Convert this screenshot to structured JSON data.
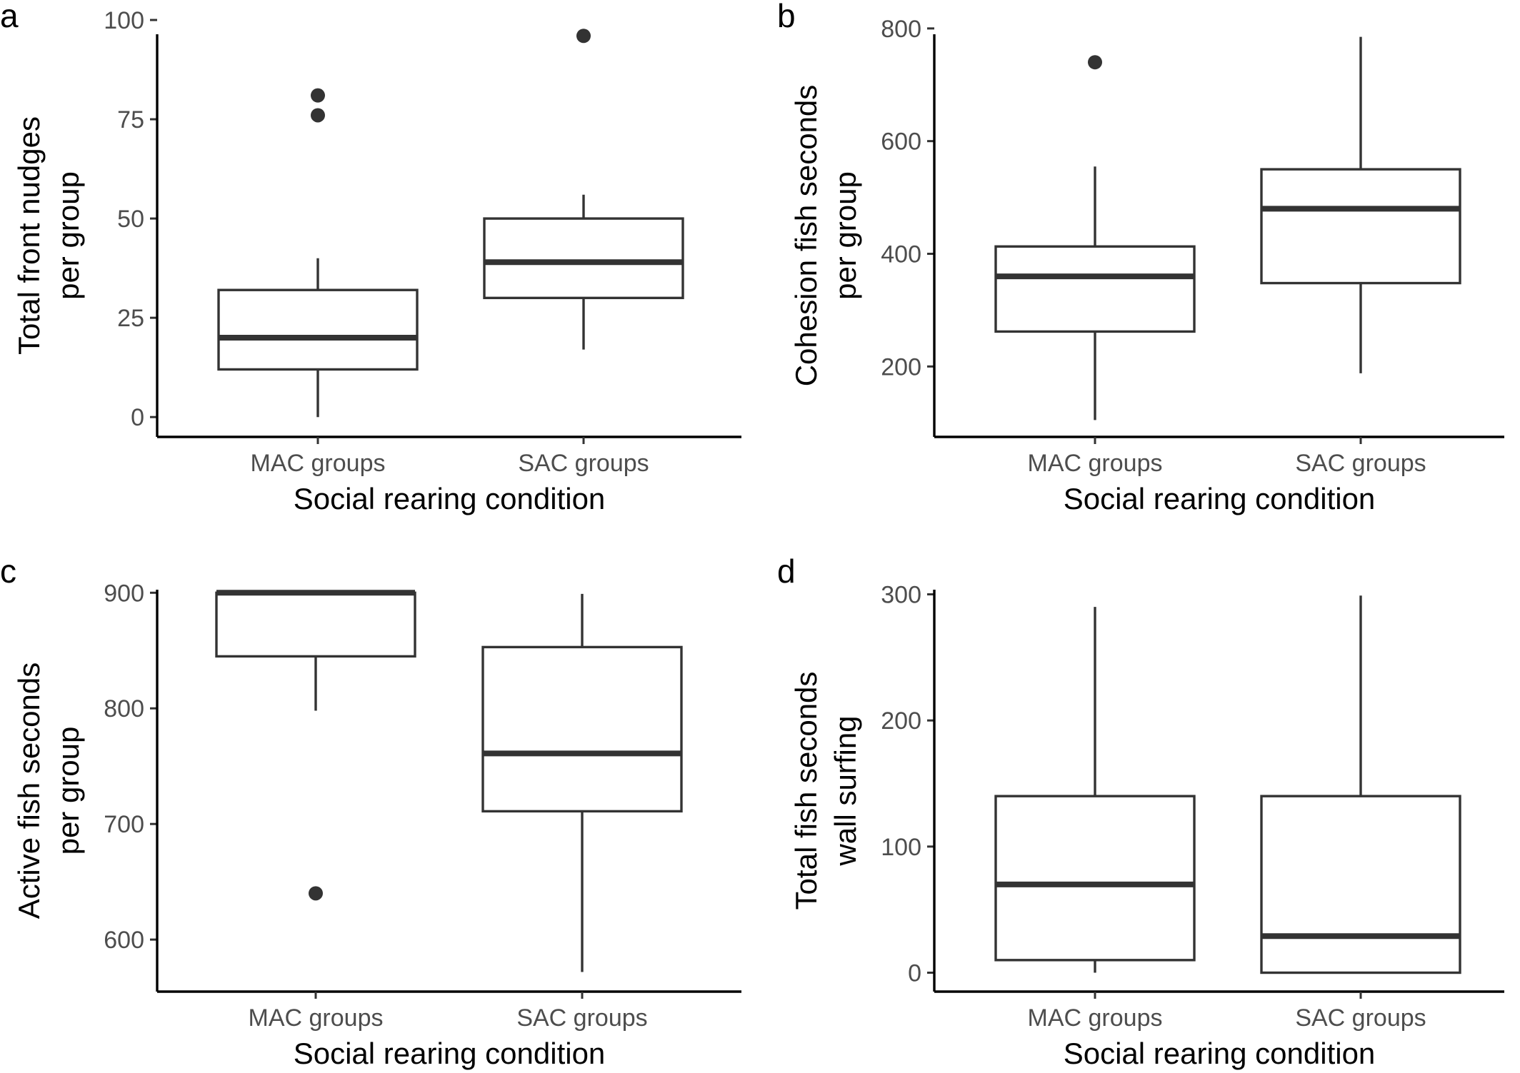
{
  "colors": {
    "box_stroke": "#333333",
    "axis": "#000000",
    "tick_text": "#4d4d4d",
    "background": "#ffffff"
  },
  "chart_data": [
    {
      "panel": "a",
      "type": "box",
      "categories": [
        "MAC groups",
        "SAC groups"
      ],
      "xlabel": "Social rearing condition",
      "ylabel_lines": [
        "Total front nudges",
        "per group"
      ],
      "ylim": [
        -5,
        100
      ],
      "yticks": [
        0,
        25,
        50,
        75,
        100
      ],
      "yticklabels": [
        "0",
        "25",
        "50",
        "75",
        "100"
      ],
      "grid": false,
      "boxes": [
        {
          "category": "MAC groups",
          "whisker_low": 0,
          "q1": 12,
          "median": 20,
          "q3": 32,
          "whisker_high": 40,
          "outliers": [
            76,
            81
          ]
        },
        {
          "category": "SAC groups",
          "whisker_low": 17,
          "q1": 30,
          "median": 39,
          "q3": 50,
          "whisker_high": 56,
          "outliers": [
            96
          ]
        }
      ]
    },
    {
      "panel": "b",
      "type": "box",
      "categories": [
        "MAC groups",
        "SAC groups"
      ],
      "xlabel": "Social rearing condition",
      "ylabel_lines": [
        "Cohesion fish seconds",
        "per group"
      ],
      "ylim": [
        75,
        815
      ],
      "yticks": [
        200,
        400,
        600,
        800
      ],
      "yticklabels": [
        "200",
        "400",
        "600",
        "800"
      ],
      "grid": false,
      "boxes": [
        {
          "category": "MAC groups",
          "whisker_low": 105,
          "q1": 262,
          "median": 360,
          "q3": 413,
          "whisker_high": 555,
          "outliers": [
            740
          ]
        },
        {
          "category": "SAC groups",
          "whisker_low": 188,
          "q1": 348,
          "median": 480,
          "q3": 550,
          "whisker_high": 785,
          "outliers": []
        }
      ]
    },
    {
      "panel": "c",
      "type": "box",
      "categories": [
        "MAC groups",
        "SAC groups"
      ],
      "xlabel": "Social rearing condition",
      "ylabel_lines": [
        "Active fish seconds",
        "per group"
      ],
      "ylim": [
        555,
        915
      ],
      "yticks": [
        600,
        700,
        800,
        900
      ],
      "yticklabels": [
        "600",
        "700",
        "800",
        "900"
      ],
      "grid": false,
      "boxes": [
        {
          "category": "MAC groups",
          "whisker_low": 798,
          "q1": 845,
          "median": 900,
          "q3": 900,
          "whisker_high": 900,
          "outliers": [
            640
          ]
        },
        {
          "category": "SAC groups",
          "whisker_low": 572,
          "q1": 711,
          "median": 761,
          "q3": 853,
          "whisker_high": 899,
          "outliers": []
        }
      ]
    },
    {
      "panel": "d",
      "type": "box",
      "categories": [
        "MAC groups",
        "SAC groups"
      ],
      "xlabel": "Social rearing condition",
      "ylabel_lines": [
        "Total fish seconds",
        "wall surfing"
      ],
      "ylim": [
        -15,
        315
      ],
      "yticks": [
        0,
        100,
        200,
        300
      ],
      "yticklabels": [
        "0",
        "100",
        "200",
        "300"
      ],
      "grid": false,
      "boxes": [
        {
          "category": "MAC groups",
          "whisker_low": 0,
          "q1": 10,
          "median": 70,
          "q3": 140,
          "whisker_high": 290,
          "outliers": []
        },
        {
          "category": "SAC groups",
          "whisker_low": 0,
          "q1": 0,
          "median": 29,
          "q3": 140,
          "whisker_high": 299,
          "outliers": []
        }
      ]
    }
  ]
}
